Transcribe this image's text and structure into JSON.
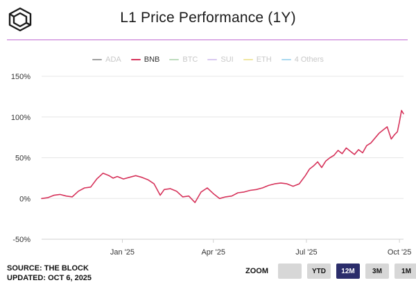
{
  "header": {
    "title": "L1 Price Performance (1Y)"
  },
  "legend": [
    {
      "label": "ADA",
      "color": "#9e9e9e",
      "active": false
    },
    {
      "label": "BNB",
      "color": "#d6325a",
      "active": true
    },
    {
      "label": "BTC",
      "color": "#bcdcbc",
      "active": false
    },
    {
      "label": "SUI",
      "color": "#d8c8f0",
      "active": false
    },
    {
      "label": "ETH",
      "color": "#f0e6a0",
      "active": false
    },
    {
      "label": "4 Others",
      "color": "#a8d8f0",
      "active": false
    }
  ],
  "chart_data": {
    "type": "line",
    "title": "L1 Price Performance (1Y)",
    "xlabel": "",
    "ylabel": "",
    "ylim": [
      -50,
      150
    ],
    "y_ticks": [
      "150%",
      "100%",
      "50%",
      "0%",
      "-50%"
    ],
    "y_tick_values": [
      150,
      100,
      50,
      0,
      -50
    ],
    "x_tick_labels": [
      "Jan '25",
      "Apr '25",
      "Jul '25",
      "Oct '25"
    ],
    "x_tick_values": [
      79,
      168,
      259,
      350
    ],
    "xlim": [
      0,
      354
    ],
    "grid": true,
    "series": [
      {
        "name": "BNB",
        "color": "#d6325a",
        "x": [
          0,
          6,
          12,
          18,
          24,
          30,
          36,
          42,
          48,
          54,
          60,
          66,
          70,
          74,
          80,
          86,
          92,
          98,
          104,
          110,
          116,
          120,
          126,
          132,
          138,
          144,
          150,
          156,
          162,
          168,
          174,
          180,
          186,
          192,
          198,
          204,
          210,
          216,
          222,
          228,
          234,
          240,
          246,
          252,
          258,
          262,
          266,
          270,
          274,
          278,
          282,
          286,
          290,
          294,
          298,
          302,
          306,
          310,
          314,
          318,
          322,
          326,
          330,
          334,
          338,
          342,
          345,
          348,
          350,
          352,
          354
        ],
        "values": [
          0,
          1,
          4,
          5,
          3,
          2,
          9,
          13,
          14,
          24,
          31,
          28,
          25,
          27,
          24,
          26,
          28,
          26,
          23,
          18,
          4,
          11,
          12,
          9,
          2,
          3,
          -5,
          8,
          13,
          6,
          0,
          2,
          3,
          7,
          8,
          10,
          11,
          13,
          16,
          18,
          19,
          18,
          15,
          18,
          28,
          36,
          40,
          45,
          38,
          46,
          50,
          53,
          59,
          55,
          62,
          58,
          54,
          60,
          56,
          65,
          68,
          74,
          80,
          84,
          88,
          73,
          78,
          82,
          94,
          108,
          104
        ]
      }
    ]
  },
  "footer": {
    "source": "SOURCE: THE BLOCK",
    "updated": "UPDATED: OCT 6, 2025"
  },
  "zoom": {
    "label": "ZOOM",
    "buttons": [
      {
        "label": "",
        "active": false
      },
      {
        "label": "YTD",
        "active": false
      },
      {
        "label": "12M",
        "active": true
      },
      {
        "label": "3M",
        "active": false
      },
      {
        "label": "1M",
        "active": false
      }
    ]
  }
}
